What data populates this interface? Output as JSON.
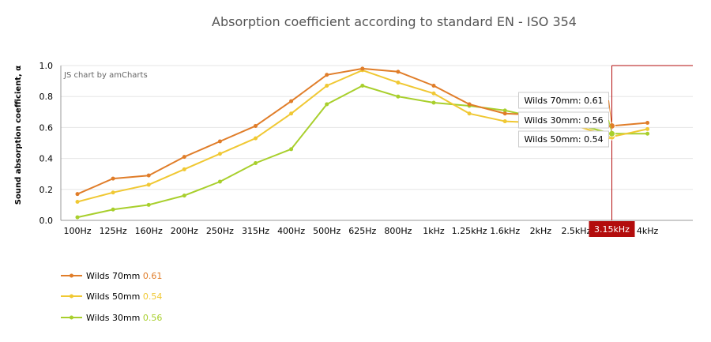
{
  "chart_data": {
    "type": "line",
    "title": "Absorption coefficient according to standard EN - ISO 354",
    "ylabel": "Sound absorption coefficient, α",
    "xlabel": "",
    "credit": "JS chart by amCharts",
    "ylim": [
      0,
      1
    ],
    "yticks": [
      0.0,
      0.2,
      0.4,
      0.6,
      0.8,
      1.0
    ],
    "grid": true,
    "categories": [
      "100Hz",
      "125Hz",
      "160Hz",
      "200Hz",
      "250Hz",
      "315Hz",
      "400Hz",
      "500Hz",
      "625Hz",
      "800Hz",
      "1kHz",
      "1.25kHz",
      "1.6kHz",
      "2kHz",
      "2.5kHz",
      "3.15kHz",
      "4kHz"
    ],
    "series": [
      {
        "name": "Wilds 70mm",
        "color": "#e07d29",
        "values": [
          0.17,
          0.27,
          0.29,
          0.41,
          0.51,
          0.61,
          0.77,
          0.94,
          0.98,
          0.96,
          0.87,
          0.75,
          0.69,
          0.68,
          0.64,
          0.61,
          0.63
        ]
      },
      {
        "name": "Wilds 50mm",
        "color": "#f0c833",
        "values": [
          0.12,
          0.18,
          0.23,
          0.33,
          0.43,
          0.53,
          0.69,
          0.87,
          0.97,
          0.89,
          0.82,
          0.69,
          0.64,
          0.63,
          0.61,
          0.54,
          0.59
        ]
      },
      {
        "name": "Wilds 30mm",
        "color": "#a8cf2c",
        "values": [
          0.02,
          0.07,
          0.1,
          0.16,
          0.25,
          0.37,
          0.46,
          0.75,
          0.87,
          0.8,
          0.76,
          0.74,
          0.71,
          0.66,
          0.62,
          0.56,
          0.56
        ]
      }
    ],
    "legend": {
      "placement": "bottom-left",
      "items": [
        {
          "name": "Wilds 70mm",
          "value": "0.61",
          "color": "#e07d29"
        },
        {
          "name": "Wilds 50mm",
          "value": "0.54",
          "color": "#f0c833"
        },
        {
          "name": "Wilds 30mm",
          "value": "0.56",
          "color": "#a8cf2c"
        }
      ]
    },
    "cursor": {
      "category": "3.15kHz",
      "color": "#b30d0d",
      "tooltips": [
        {
          "series": "Wilds 70mm",
          "label": "Wilds 70mm:",
          "value": "0.61"
        },
        {
          "series": "Wilds 30mm",
          "label": "Wilds 30mm:",
          "value": "0.56"
        },
        {
          "series": "Wilds 50mm",
          "label": "Wilds 50mm:",
          "value": "0.54"
        }
      ]
    }
  }
}
